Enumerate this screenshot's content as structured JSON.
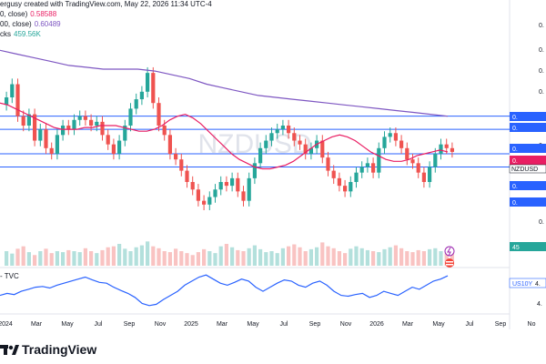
{
  "header": {
    "line1_prefix": "ergusy created with TradingView.com, May 22, 2026 11:34 UTC-4",
    "ma1_label": "0, close)",
    "ma1_value": "0.58588",
    "ma2_label": "00, close)",
    "ma2_value": "0.60489",
    "vol_label": "cks",
    "vol_value": "459.56K"
  },
  "watermark": "NZDUSD",
  "price_badges": {
    "symbol": "NZDUSD",
    "labels": [
      "0.",
      "0.",
      "0.",
      "0.",
      "0.",
      "0.",
      "0.",
      "0.",
      "0.",
      "0.",
      "0."
    ],
    "vol_badge": "45",
    "rsi_badge": "US10Y",
    "rsi_val": "4.",
    "rsi_low": "4."
  },
  "lower_pane_title": "- TVC",
  "time_axis": [
    "2024",
    "Mar",
    "May",
    "Jul",
    "Sep",
    "Nov",
    "2025",
    "Mar",
    "May",
    "Jul",
    "Sep",
    "Nov",
    "2026",
    "Mar",
    "May",
    "Jul",
    "Sep",
    "No"
  ],
  "logo_text": "TradingView",
  "colors": {
    "up": "#26a69a",
    "down": "#ef5350",
    "ma_fast": "#e91e63",
    "ma_slow": "#7e57c2",
    "line_blue": "#2962ff",
    "hline": "#2962ff"
  },
  "chart_data": {
    "type": "candlestick",
    "title": "NZDUSD",
    "ylim": [
      0.54,
      0.645
    ],
    "candles_close": [
      0.615,
      0.622,
      0.605,
      0.6,
      0.606,
      0.592,
      0.598,
      0.588,
      0.585,
      0.595,
      0.6,
      0.598,
      0.603,
      0.605,
      0.603,
      0.6,
      0.602,
      0.595,
      0.59,
      0.585,
      0.592,
      0.6,
      0.609,
      0.614,
      0.618,
      0.628,
      0.612,
      0.6,
      0.595,
      0.585,
      0.582,
      0.576,
      0.57,
      0.566,
      0.56,
      0.558,
      0.562,
      0.566,
      0.57,
      0.568,
      0.572,
      0.565,
      0.56,
      0.572,
      0.58,
      0.588,
      0.592,
      0.596,
      0.598,
      0.6,
      0.596,
      0.592,
      0.59,
      0.585,
      0.588,
      0.592,
      0.583,
      0.576,
      0.572,
      0.568,
      0.565,
      0.57,
      0.575,
      0.578,
      0.58,
      0.575,
      0.588,
      0.594,
      0.596,
      0.592,
      0.588,
      0.582,
      0.58,
      0.575,
      0.57,
      0.578,
      0.585,
      0.59,
      0.588,
      0.586
    ],
    "ma_fast": [
      0.612,
      0.611,
      0.609,
      0.607,
      0.605,
      0.603,
      0.601,
      0.599,
      0.598,
      0.598,
      0.598,
      0.599,
      0.599,
      0.6,
      0.6,
      0.6,
      0.599,
      0.598,
      0.597,
      0.597,
      0.598,
      0.6,
      0.603,
      0.605,
      0.606,
      0.604,
      0.601,
      0.597,
      0.593,
      0.589,
      0.585,
      0.582,
      0.58,
      0.578,
      0.577,
      0.577,
      0.578,
      0.579,
      0.581,
      0.584,
      0.587,
      0.59,
      0.592,
      0.594,
      0.595,
      0.594,
      0.592,
      0.589,
      0.586,
      0.584,
      0.582,
      0.581,
      0.581,
      0.582,
      0.584,
      0.585,
      0.586,
      0.587,
      0.586
    ],
    "ma_slow": [
      0.64,
      0.638,
      0.636,
      0.634,
      0.632,
      0.631,
      0.63,
      0.63,
      0.63,
      0.629,
      0.627,
      0.625,
      0.622,
      0.62,
      0.618,
      0.616,
      0.615,
      0.614,
      0.613,
      0.612,
      0.611,
      0.61,
      0.609,
      0.608,
      0.607,
      0.606,
      0.605
    ],
    "hlines": [
      0.605,
      0.598,
      0.585,
      0.578
    ],
    "volume": [
      30,
      25,
      35,
      40,
      28,
      22,
      30,
      35,
      26,
      30,
      28,
      32,
      30,
      28,
      36,
      30,
      26,
      32,
      38,
      40,
      45,
      35,
      30,
      38,
      42,
      50,
      40,
      36,
      30,
      28,
      35,
      30,
      26,
      22,
      28,
      34,
      30,
      26,
      40,
      45,
      38,
      32,
      30,
      36,
      42,
      34,
      28,
      30,
      26,
      36,
      40,
      44,
      38,
      30,
      34,
      38,
      48,
      40,
      36,
      30,
      26,
      35,
      40,
      36,
      32,
      30,
      28,
      34,
      38,
      42,
      36,
      30,
      28,
      32,
      30,
      34,
      36,
      30,
      26,
      28
    ],
    "us10y": [
      4.1,
      4.15,
      4.12,
      4.2,
      4.25,
      4.3,
      4.32,
      4.28,
      4.35,
      4.4,
      4.45,
      4.5,
      4.55,
      4.48,
      4.42,
      4.4,
      4.3,
      4.22,
      4.15,
      4.05,
      3.9,
      3.85,
      3.88,
      4.0,
      4.1,
      4.2,
      4.35,
      4.45,
      4.55,
      4.6,
      4.5,
      4.4,
      4.35,
      4.42,
      4.5,
      4.45,
      4.3,
      4.2,
      4.3,
      4.4,
      4.48,
      4.45,
      4.35,
      4.3,
      4.4,
      4.45,
      4.35,
      4.2,
      4.1,
      4.08,
      4.12,
      4.15,
      4.05,
      4.1,
      4.2,
      4.15,
      4.1,
      4.2,
      4.3,
      4.25,
      4.35,
      4.45,
      4.5,
      4.58
    ]
  }
}
